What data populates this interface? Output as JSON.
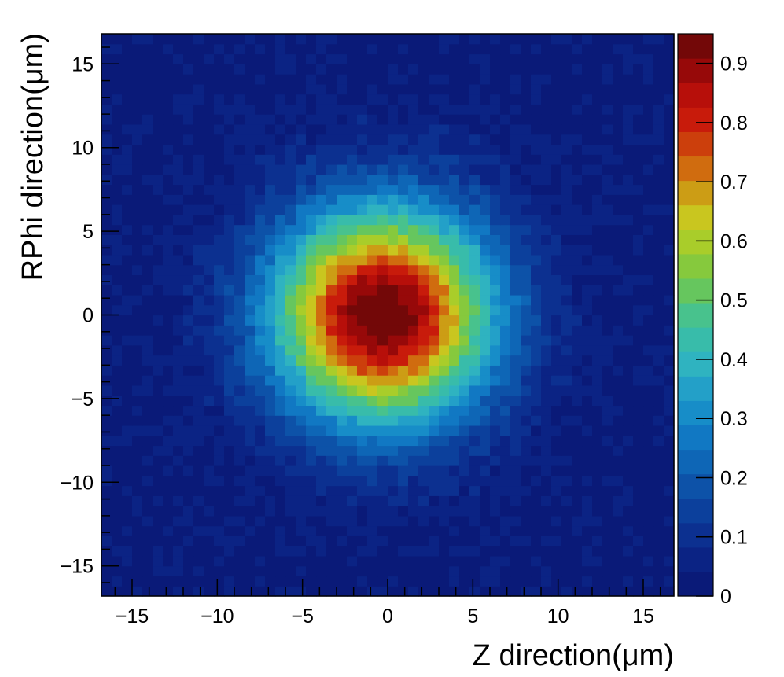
{
  "chart_data": {
    "type": "heatmap",
    "xlabel": "Z direction(μm)",
    "ylabel": "RPhi direction(μm)",
    "xlim": [
      -16.8,
      16.8
    ],
    "ylim": [
      -16.8,
      16.8
    ],
    "bins": 56,
    "distribution": {
      "shape": "2D Gaussian",
      "center": [
        -0.3,
        0.0
      ],
      "peak": 0.95,
      "sigma": 4.5
    },
    "x_ticks": [
      -15,
      -10,
      -5,
      0,
      5,
      10,
      15
    ],
    "x_tick_labels": [
      "−15",
      "−10",
      "−5",
      "0",
      "5",
      "10",
      "15"
    ],
    "y_ticks": [
      -15,
      -10,
      -5,
      0,
      5,
      10,
      15
    ],
    "y_tick_labels": [
      "−15",
      "−10",
      "−5",
      "0",
      "5",
      "10",
      "15"
    ],
    "colorbar": {
      "range": [
        0,
        0.95
      ],
      "ticks": [
        0,
        0.1,
        0.2,
        0.3,
        0.4,
        0.5,
        0.6,
        0.7,
        0.8,
        0.9
      ],
      "tick_labels": [
        "0",
        "0.1",
        "0.2",
        "0.3",
        "0.4",
        "0.5",
        "0.6",
        "0.7",
        "0.8",
        "0.9"
      ],
      "palette": [
        "#0a1a78",
        "#0b2384",
        "#0c3090",
        "#0c409c",
        "#0d52a8",
        "#0e66b6",
        "#1178c3",
        "#178dc8",
        "#23a0c8",
        "#2fb3c0",
        "#38bcaa",
        "#48c28d",
        "#66c65e",
        "#86c93d",
        "#a9cd2a",
        "#c9c61f",
        "#cc9d15",
        "#d06c0f",
        "#cc3f0c",
        "#c81b0b",
        "#b70f0a",
        "#970909",
        "#730808"
      ]
    },
    "grid": false,
    "legend": "none"
  }
}
